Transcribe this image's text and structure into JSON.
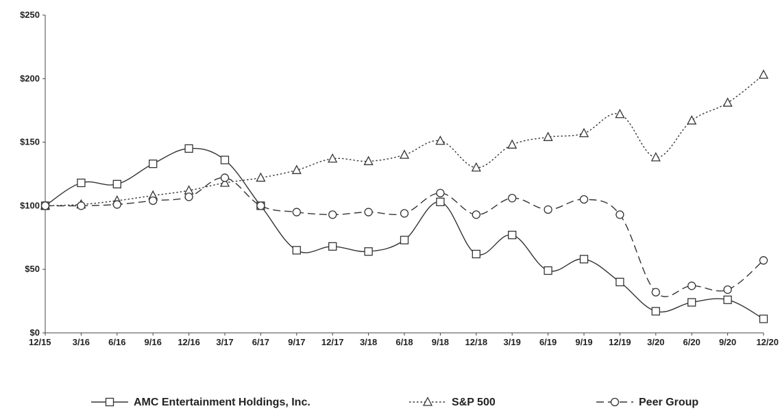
{
  "chart_data": {
    "type": "line",
    "title": "",
    "xlabel": "",
    "ylabel": "",
    "categories": [
      "12/15",
      "3/16",
      "6/16",
      "9/16",
      "12/16",
      "3/17",
      "6/17",
      "9/17",
      "12/17",
      "3/18",
      "6/18",
      "9/18",
      "12/18",
      "3/19",
      "6/19",
      "9/19",
      "12/19",
      "3/20",
      "6/20",
      "9/20",
      "12/20"
    ],
    "y_ticks": [
      "$0",
      "$50",
      "$100",
      "$150",
      "$200",
      "$250"
    ],
    "ylim": [
      0,
      250
    ],
    "grid": false,
    "legend_position": "bottom",
    "series": [
      {
        "name": "AMC Entertainment Holdings, Inc.",
        "marker": "square",
        "dash": "solid",
        "color": "#333333",
        "values": [
          100,
          118,
          117,
          133,
          145,
          136,
          100,
          65,
          68,
          64,
          73,
          103,
          62,
          77,
          49,
          58,
          40,
          17,
          24,
          26,
          11
        ]
      },
      {
        "name": "S&P 500",
        "marker": "triangle",
        "dash": "dotted",
        "color": "#333333",
        "values": [
          100,
          101,
          104,
          108,
          112,
          118,
          122,
          128,
          137,
          135,
          140,
          151,
          130,
          148,
          154,
          157,
          172,
          138,
          167,
          181,
          203
        ]
      },
      {
        "name": "Peer Group",
        "marker": "circle",
        "dash": "dashed",
        "color": "#333333",
        "values": [
          100,
          100,
          101,
          104,
          107,
          122,
          100,
          95,
          93,
          95,
          94,
          110,
          93,
          106,
          97,
          105,
          93,
          32,
          37,
          34,
          57
        ]
      }
    ]
  }
}
